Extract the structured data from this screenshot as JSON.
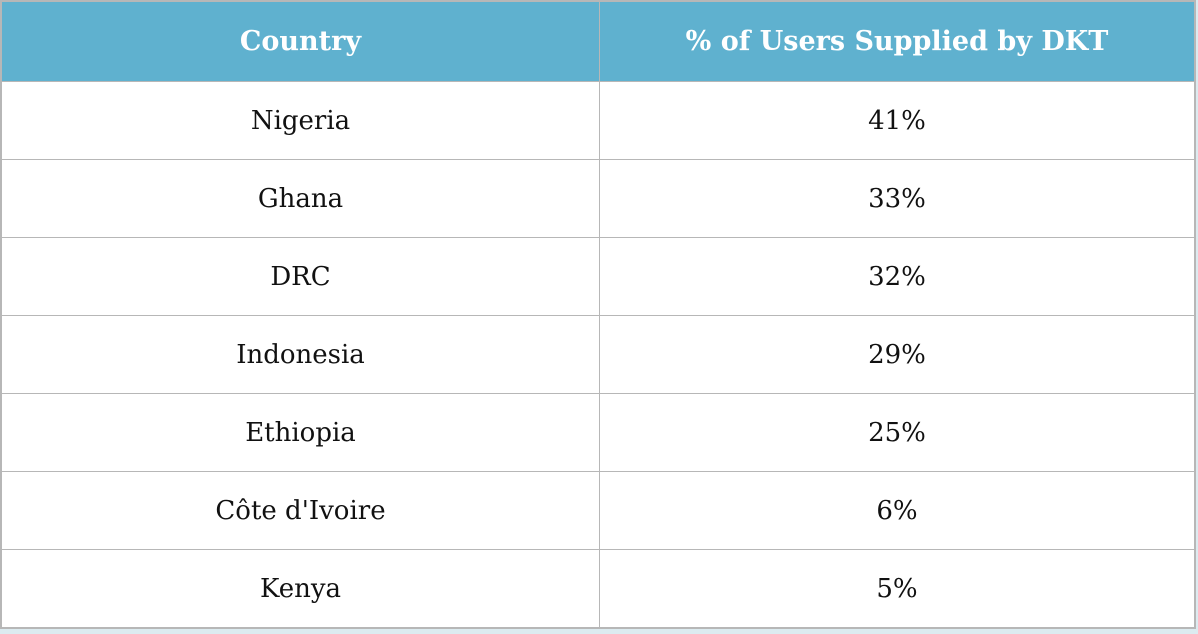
{
  "table": {
    "headers": [
      "Country",
      "% of Users Supplied by DKT"
    ],
    "rows": [
      [
        "Nigeria",
        "41%"
      ],
      [
        "Ghana",
        "33%"
      ],
      [
        "DRC",
        "32%"
      ],
      [
        "Indonesia",
        "29%"
      ],
      [
        "Ethiopia",
        "25%"
      ],
      [
        "Côte d'Ivoire",
        "6%"
      ],
      [
        "Kenya",
        "5%"
      ]
    ]
  },
  "colors": {
    "header_background": "#5fb1cf",
    "header_text": "#ffffff",
    "border": "#b7b7b7",
    "page_background": "#dcebf0"
  }
}
